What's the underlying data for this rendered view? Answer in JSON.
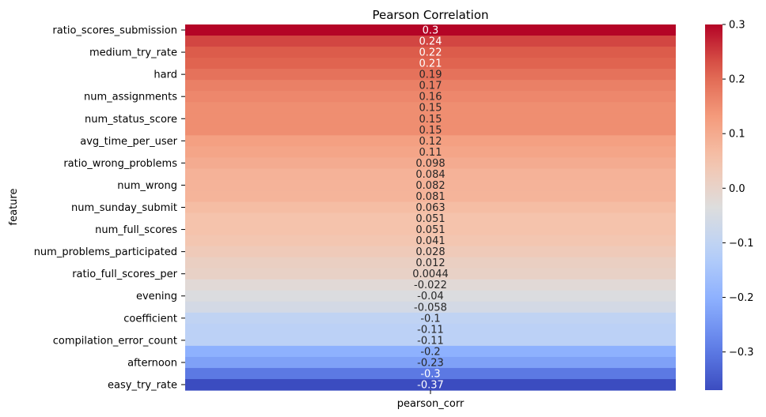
{
  "chart_data": {
    "type": "heatmap",
    "title": "Pearson Correlation",
    "xlabel": "pearson_corr",
    "ylabel": "feature",
    "columns": [
      "pearson_corr"
    ],
    "rows": [
      {
        "feature": "ratio_scores_submission",
        "label": "ratio_scores_submission",
        "value": 0.3,
        "text": "0.3"
      },
      {
        "feature": "",
        "label": "",
        "value": 0.24,
        "text": "0.24"
      },
      {
        "feature": "medium_try_rate",
        "label": "medium_try_rate",
        "value": 0.22,
        "text": "0.22"
      },
      {
        "feature": "",
        "label": "",
        "value": 0.21,
        "text": "0.21"
      },
      {
        "feature": "hard",
        "label": "hard",
        "value": 0.19,
        "text": "0.19"
      },
      {
        "feature": "",
        "label": "",
        "value": 0.17,
        "text": "0.17"
      },
      {
        "feature": "num_assignments",
        "label": "num_assignments",
        "value": 0.16,
        "text": "0.16"
      },
      {
        "feature": "",
        "label": "",
        "value": 0.15,
        "text": "0.15"
      },
      {
        "feature": "num_status_score",
        "label": "num_status_score",
        "value": 0.15,
        "text": "0.15"
      },
      {
        "feature": "",
        "label": "",
        "value": 0.15,
        "text": "0.15"
      },
      {
        "feature": "avg_time_per_user",
        "label": "avg_time_per_user",
        "value": 0.12,
        "text": "0.12"
      },
      {
        "feature": "",
        "label": "",
        "value": 0.11,
        "text": "0.11"
      },
      {
        "feature": "ratio_wrong_problems",
        "label": "ratio_wrong_problems",
        "value": 0.098,
        "text": "0.098"
      },
      {
        "feature": "",
        "label": "",
        "value": 0.084,
        "text": "0.084"
      },
      {
        "feature": "num_wrong",
        "label": "num_wrong",
        "value": 0.082,
        "text": "0.082"
      },
      {
        "feature": "",
        "label": "",
        "value": 0.081,
        "text": "0.081"
      },
      {
        "feature": "num_sunday_submit",
        "label": "num_sunday_submit",
        "value": 0.063,
        "text": "0.063"
      },
      {
        "feature": "",
        "label": "",
        "value": 0.051,
        "text": "0.051"
      },
      {
        "feature": "num_full_scores",
        "label": "num_full_scores",
        "value": 0.051,
        "text": "0.051"
      },
      {
        "feature": "",
        "label": "",
        "value": 0.041,
        "text": "0.041"
      },
      {
        "feature": "num_problems_participated",
        "label": "num_problems_participated",
        "value": 0.028,
        "text": "0.028"
      },
      {
        "feature": "",
        "label": "",
        "value": 0.012,
        "text": "0.012"
      },
      {
        "feature": "ratio_full_scores_per",
        "label": "ratio_full_scores_per",
        "value": 0.0044,
        "text": "0.0044"
      },
      {
        "feature": "",
        "label": "",
        "value": -0.022,
        "text": "-0.022"
      },
      {
        "feature": "evening",
        "label": "evening",
        "value": -0.04,
        "text": "-0.04"
      },
      {
        "feature": "",
        "label": "",
        "value": -0.058,
        "text": "-0.058"
      },
      {
        "feature": "coefficient",
        "label": "coefficient",
        "value": -0.1,
        "text": "-0.1"
      },
      {
        "feature": "",
        "label": "",
        "value": -0.11,
        "text": "-0.11"
      },
      {
        "feature": "compilation_error_count",
        "label": "compilation_error_count",
        "value": -0.11,
        "text": "-0.11"
      },
      {
        "feature": "",
        "label": "",
        "value": -0.2,
        "text": "-0.2"
      },
      {
        "feature": "afternoon",
        "label": "afternoon",
        "value": -0.23,
        "text": "-0.23"
      },
      {
        "feature": "",
        "label": "",
        "value": -0.3,
        "text": "-0.3"
      },
      {
        "feature": "easy_try_rate",
        "label": "easy_try_rate",
        "value": -0.37,
        "text": "-0.37"
      }
    ],
    "colormap": "coolwarm",
    "vmin": -0.37,
    "vmax": 0.3,
    "colorbar_ticks": [
      {
        "value": 0.3,
        "label": "0.3"
      },
      {
        "value": 0.2,
        "label": "0.2"
      },
      {
        "value": 0.1,
        "label": "0.1"
      },
      {
        "value": 0.0,
        "label": "0.0"
      },
      {
        "value": -0.1,
        "label": "−0.1"
      },
      {
        "value": -0.2,
        "label": "−0.2"
      },
      {
        "value": -0.3,
        "label": "−0.3"
      }
    ],
    "legend": "colorbar-right",
    "grid": false
  }
}
